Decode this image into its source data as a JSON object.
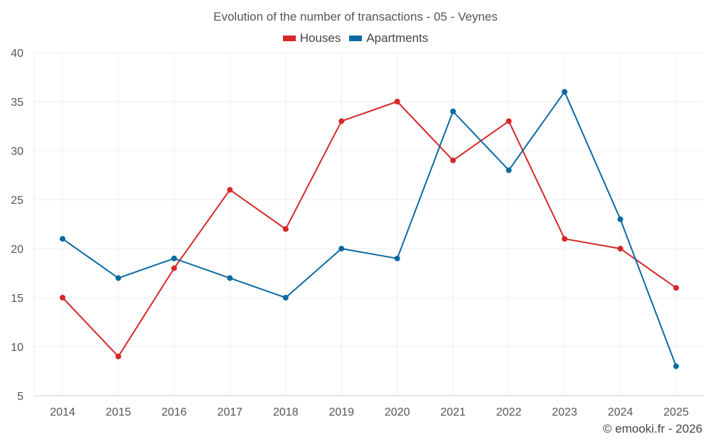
{
  "chart_data": {
    "type": "line",
    "title": "Evolution of the number of transactions - 05 - Veynes",
    "x": [
      "2014",
      "2015",
      "2016",
      "2017",
      "2018",
      "2019",
      "2020",
      "2021",
      "2022",
      "2023",
      "2024",
      "2025"
    ],
    "series": [
      {
        "name": "Houses",
        "color": "#d62728",
        "values": [
          15,
          9,
          18,
          26,
          22,
          33,
          35,
          29,
          33,
          21,
          20,
          16
        ]
      },
      {
        "name": "Apartments",
        "color": "#0a6aa1",
        "values": [
          21,
          17,
          19,
          17,
          15,
          20,
          19,
          34,
          28,
          36,
          23,
          8
        ]
      }
    ],
    "ylim": [
      5,
      40
    ],
    "yticks": [
      5,
      10,
      15,
      20,
      25,
      30,
      35,
      40
    ],
    "xlabel": "",
    "ylabel": "",
    "grid": true,
    "legend": "top-center"
  },
  "credit": "© emooki.fr - 2026"
}
